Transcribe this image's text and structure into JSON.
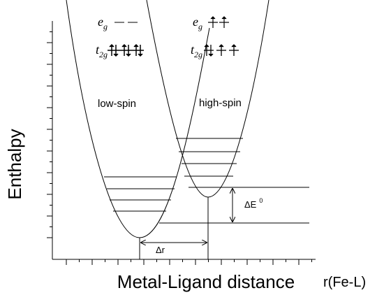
{
  "axes": {
    "y_label": "Enthalpy",
    "x_label": "Metal-Ligand distance",
    "x_unit": "r(Fe-L)"
  },
  "curves": [
    {
      "label": "low-spin",
      "eg": {
        "symbol": "e",
        "subscript": "g"
      },
      "t2g": {
        "symbol": "t",
        "subscript": "2g"
      }
    },
    {
      "label": "high-spin",
      "eg": {
        "symbol": "e",
        "subscript": "g"
      },
      "t2g": {
        "symbol": "t",
        "subscript": "2g"
      }
    }
  ],
  "annotations": {
    "delta_e": "ΔE",
    "delta_e_superscript": "0",
    "delta_r": "Δr"
  }
}
